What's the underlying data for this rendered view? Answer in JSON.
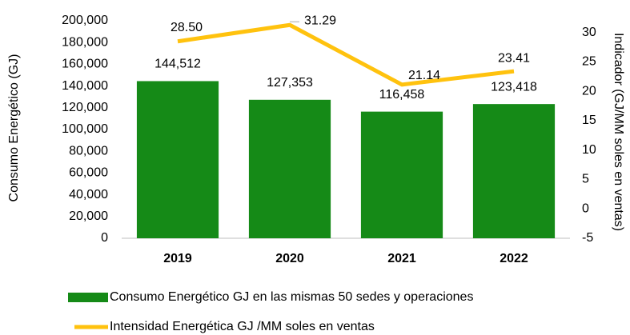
{
  "chart_data": {
    "type": "bar_line",
    "categories": [
      "2019",
      "2020",
      "2021",
      "2022"
    ],
    "series": [
      {
        "name": "Consumo Energético GJ en las mismas 50 sedes y operaciones",
        "type": "bar",
        "color": "#158a17",
        "values": [
          144512,
          127353,
          116458,
          123418
        ],
        "value_labels": [
          "144,512",
          "127,353",
          "116,458",
          "123,418"
        ]
      },
      {
        "name": "Intensidad Energética GJ /MM soles en ventas",
        "type": "line",
        "axis": "y2",
        "color": "#ffc20e",
        "values": [
          28.5,
          31.29,
          21.14,
          23.41
        ],
        "value_labels": [
          "28.50",
          "31.29",
          "21.14",
          "23.41"
        ]
      }
    ],
    "ylabel": "Consumo Energético (GJ)",
    "y2label": "Indicador (GJ/MM soles en ventas)",
    "ylim": [
      0,
      200000
    ],
    "yticks": [
      0,
      {
        "value": 20000,
        "label": "20,000"
      },
      {
        "value": 40000,
        "label": "40,000"
      },
      {
        "value": 60000,
        "label": "60,000"
      },
      {
        "value": 80000,
        "label": "80,000"
      },
      {
        "value": 100000,
        "label": "100,000"
      },
      {
        "value": 120000,
        "label": "120,000"
      },
      {
        "value": 140000,
        "label": "140,000"
      },
      {
        "value": 160000,
        "label": "160,000"
      },
      {
        "value": 180000,
        "label": "180,000"
      },
      {
        "value": 200000,
        "label": "200,000"
      }
    ],
    "y2lim": [
      -5,
      32
    ],
    "y2ticks": [
      -5,
      0,
      5,
      10,
      15,
      20,
      25,
      30
    ],
    "legend": "bottom"
  }
}
